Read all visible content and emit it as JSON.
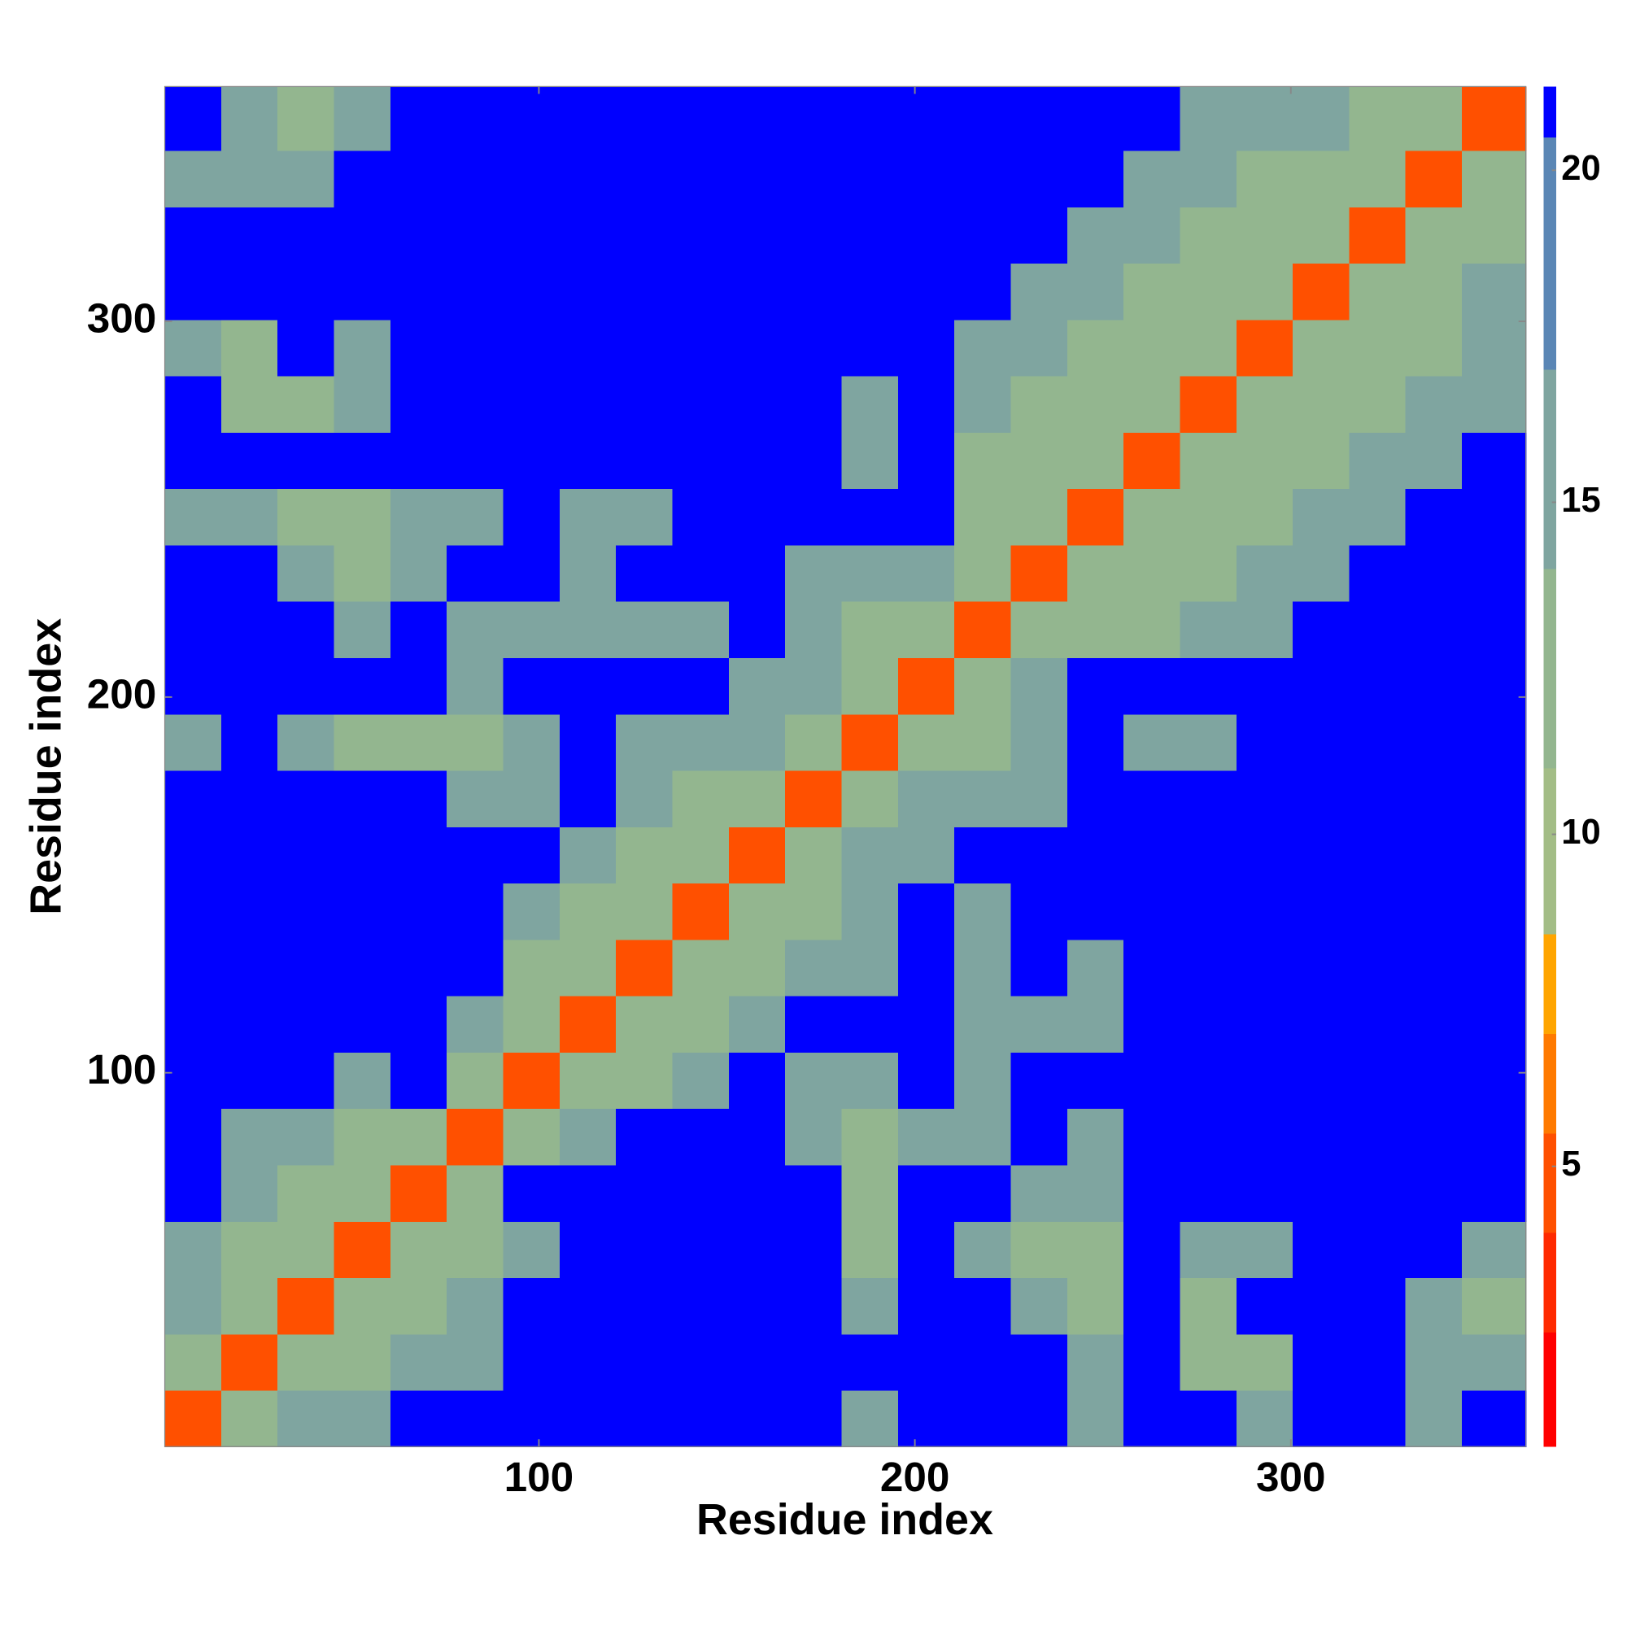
{
  "chart_data": {
    "type": "heatmap",
    "x_label": "Residue index",
    "y_label": "Residue index",
    "xlim": [
      0.5,
      362.5
    ],
    "ylim": [
      0.5,
      362.5
    ],
    "xticks": [
      100,
      200,
      300
    ],
    "yticks": [
      100,
      200,
      300
    ],
    "xbins": [
      0.5,
      15.5,
      30.5,
      45.5,
      60.5,
      75.5,
      90.5,
      105.5,
      120.5,
      135.5,
      150.5,
      165.5,
      180.5,
      195.5,
      210.5,
      225.5,
      240.5,
      255.5,
      270.5,
      285.5,
      300.5,
      315.5,
      330.5,
      345.5,
      362.5
    ],
    "ybins": [
      0.5,
      15.5,
      30.5,
      45.5,
      60.5,
      75.5,
      90.5,
      105.5,
      120.5,
      135.5,
      150.5,
      165.5,
      180.5,
      195.5,
      210.5,
      225.5,
      240.5,
      255.5,
      270.5,
      285.5,
      300.5,
      315.5,
      330.5,
      345.5,
      362.5
    ],
    "z": [
      [
        5,
        12,
        16,
        16,
        21,
        21,
        21,
        21,
        21,
        21,
        21,
        21,
        16,
        21,
        21,
        21,
        16,
        21,
        21,
        16,
        21,
        21,
        16,
        21
      ],
      [
        12,
        5,
        12,
        12,
        16,
        16,
        21,
        21,
        21,
        21,
        21,
        21,
        21,
        21,
        21,
        21,
        16,
        21,
        12,
        12,
        21,
        21,
        16,
        16
      ],
      [
        16,
        12,
        5,
        12,
        12,
        16,
        21,
        21,
        21,
        21,
        21,
        21,
        16,
        21,
        21,
        16,
        12,
        21,
        12,
        21,
        21,
        21,
        16,
        12
      ],
      [
        16,
        12,
        12,
        5,
        12,
        12,
        16,
        21,
        21,
        21,
        21,
        21,
        12,
        21,
        16,
        12,
        12,
        21,
        16,
        16,
        21,
        21,
        21,
        16
      ],
      [
        21,
        16,
        12,
        12,
        5,
        12,
        21,
        21,
        21,
        21,
        21,
        21,
        12,
        21,
        21,
        16,
        16,
        21,
        21,
        21,
        21,
        21,
        21,
        21
      ],
      [
        21,
        16,
        16,
        12,
        12,
        5,
        12,
        16,
        21,
        21,
        21,
        16,
        12,
        16,
        16,
        21,
        16,
        21,
        21,
        21,
        21,
        21,
        21,
        21
      ],
      [
        21,
        21,
        21,
        16,
        21,
        12,
        5,
        12,
        12,
        16,
        21,
        16,
        16,
        21,
        16,
        21,
        21,
        21,
        21,
        21,
        21,
        21,
        21,
        21
      ],
      [
        21,
        21,
        21,
        21,
        21,
        16,
        12,
        5,
        12,
        12,
        16,
        21,
        21,
        21,
        16,
        16,
        16,
        21,
        21,
        21,
        21,
        21,
        21,
        21
      ],
      [
        21,
        21,
        21,
        21,
        21,
        21,
        12,
        12,
        5,
        12,
        12,
        16,
        16,
        21,
        16,
        21,
        16,
        21,
        21,
        21,
        21,
        21,
        21,
        21
      ],
      [
        21,
        21,
        21,
        21,
        21,
        21,
        16,
        12,
        12,
        5,
        12,
        12,
        16,
        21,
        16,
        21,
        21,
        21,
        21,
        21,
        21,
        21,
        21,
        21
      ],
      [
        21,
        21,
        21,
        21,
        21,
        21,
        21,
        16,
        12,
        12,
        5,
        12,
        16,
        16,
        21,
        21,
        21,
        21,
        21,
        21,
        21,
        21,
        21,
        21
      ],
      [
        21,
        21,
        21,
        21,
        21,
        16,
        16,
        21,
        16,
        12,
        12,
        5,
        12,
        16,
        16,
        16,
        21,
        21,
        21,
        21,
        21,
        21,
        21,
        21
      ],
      [
        16,
        21,
        16,
        12,
        12,
        12,
        16,
        21,
        16,
        16,
        16,
        12,
        5,
        12,
        12,
        16,
        21,
        16,
        16,
        21,
        21,
        21,
        21,
        21
      ],
      [
        21,
        21,
        21,
        21,
        21,
        16,
        21,
        21,
        21,
        21,
        16,
        16,
        12,
        5,
        12,
        16,
        21,
        21,
        21,
        21,
        21,
        21,
        21,
        21
      ],
      [
        21,
        21,
        21,
        16,
        21,
        16,
        16,
        16,
        16,
        16,
        21,
        16,
        12,
        12,
        5,
        12,
        12,
        12,
        16,
        16,
        21,
        21,
        21,
        21
      ],
      [
        21,
        21,
        16,
        12,
        16,
        21,
        21,
        16,
        21,
        21,
        21,
        16,
        16,
        16,
        12,
        5,
        12,
        12,
        12,
        16,
        16,
        21,
        21,
        21
      ],
      [
        16,
        16,
        12,
        12,
        16,
        16,
        21,
        16,
        16,
        21,
        21,
        21,
        21,
        21,
        12,
        12,
        5,
        12,
        12,
        12,
        16,
        16,
        21,
        21
      ],
      [
        21,
        21,
        21,
        21,
        21,
        21,
        21,
        21,
        21,
        21,
        21,
        21,
        16,
        21,
        12,
        12,
        12,
        5,
        12,
        12,
        12,
        16,
        16,
        21
      ],
      [
        21,
        12,
        12,
        16,
        21,
        21,
        21,
        21,
        21,
        21,
        21,
        21,
        16,
        21,
        16,
        12,
        12,
        12,
        5,
        12,
        12,
        12,
        16,
        16
      ],
      [
        16,
        12,
        21,
        16,
        21,
        21,
        21,
        21,
        21,
        21,
        21,
        21,
        21,
        21,
        16,
        16,
        12,
        12,
        12,
        5,
        12,
        12,
        12,
        16
      ],
      [
        21,
        21,
        21,
        21,
        21,
        21,
        21,
        21,
        21,
        21,
        21,
        21,
        21,
        21,
        21,
        16,
        16,
        12,
        12,
        12,
        5,
        12,
        12,
        16
      ],
      [
        21,
        21,
        21,
        21,
        21,
        21,
        21,
        21,
        21,
        21,
        21,
        21,
        21,
        21,
        21,
        21,
        16,
        16,
        12,
        12,
        12,
        5,
        12,
        12
      ],
      [
        16,
        16,
        16,
        21,
        21,
        21,
        21,
        21,
        21,
        21,
        21,
        21,
        21,
        21,
        21,
        21,
        21,
        16,
        16,
        12,
        12,
        12,
        5,
        12
      ],
      [
        21,
        16,
        12,
        16,
        21,
        21,
        21,
        21,
        21,
        21,
        21,
        21,
        21,
        21,
        21,
        21,
        21,
        21,
        16,
        16,
        16,
        12,
        12,
        5
      ]
    ],
    "colorbar": {
      "levels": [
        0.78,
        2.5,
        4,
        5.5,
        7,
        8.5,
        11,
        14,
        17,
        20.5,
        21.26
      ],
      "colors": [
        "#ff0000",
        "#ff2a00",
        "#ff5000",
        "#ff7a00",
        "#ffa500",
        "#a3bd86",
        "#93b68f",
        "#7fa5a0",
        "#5a86b5",
        "#0000ff"
      ],
      "ticks": [
        5,
        10,
        15,
        20
      ]
    }
  }
}
